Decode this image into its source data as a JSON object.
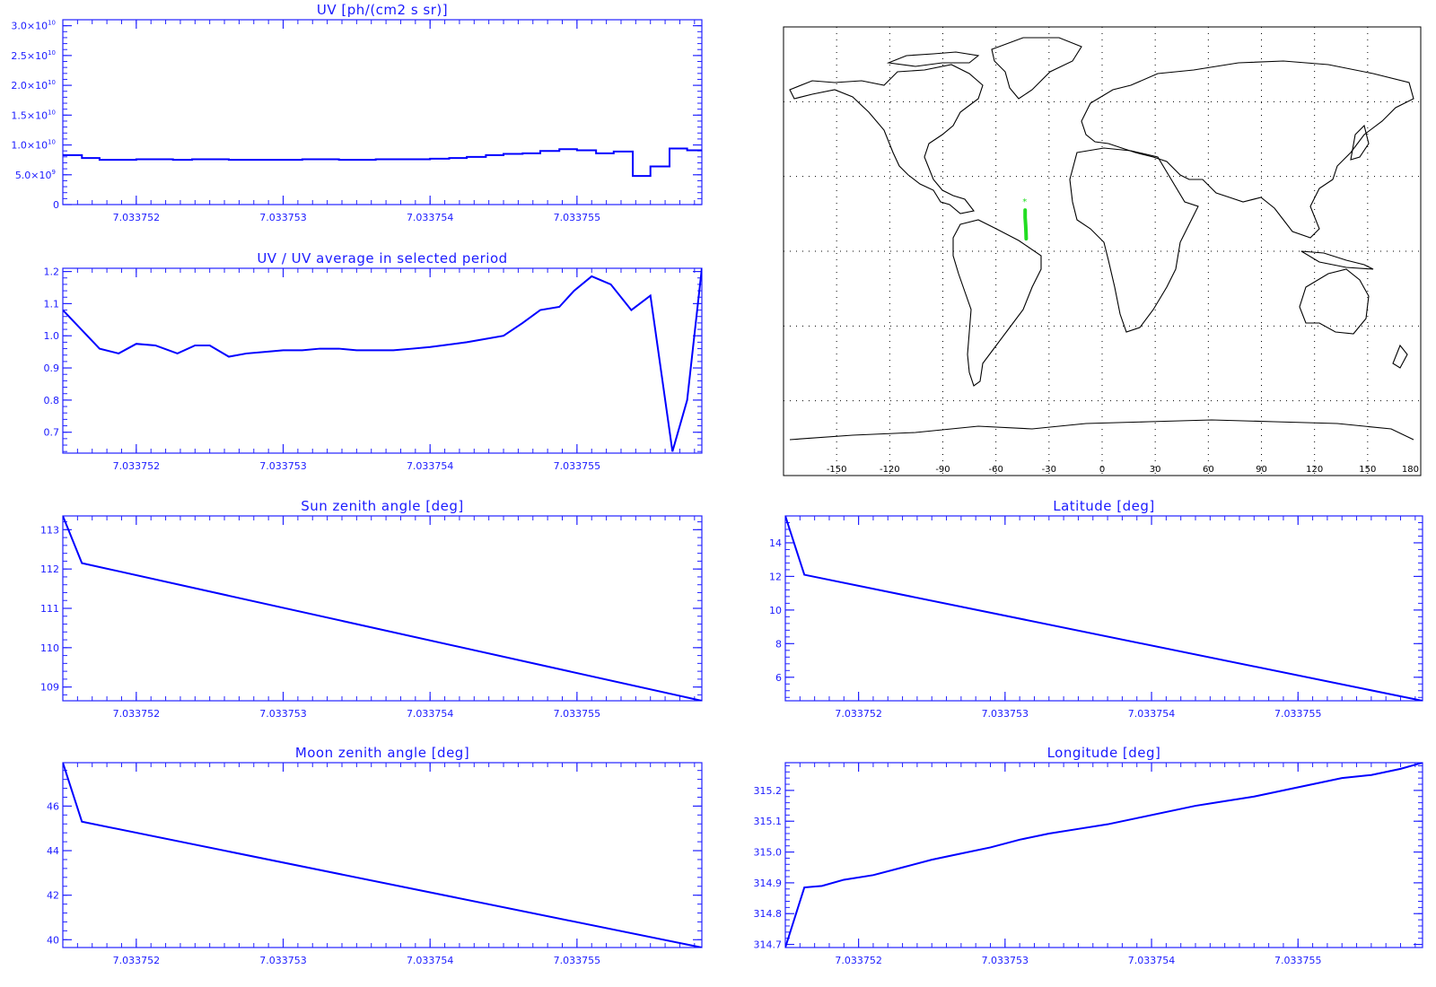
{
  "colors": {
    "plot": "#0000ff",
    "axis": "#2222ff",
    "track": "#22dd22",
    "map": "#000000"
  },
  "chart_data": [
    {
      "id": "uv",
      "type": "line",
      "step": true,
      "title": "UV [ph/(cm2 s sr)]",
      "xlim": [
        7.0337515,
        7.03375585
      ],
      "ylim": [
        0,
        31000000000
      ],
      "xticks": [
        7.033752,
        7.033753,
        7.033754,
        7.033755
      ],
      "xtick_labels": [
        "7.033752",
        "7.033753",
        "7.033754",
        "7.033755"
      ],
      "yticks": [
        0,
        5000000000,
        10000000000,
        15000000000,
        20000000000,
        25000000000,
        30000000000
      ],
      "ytick_labels": [
        {
          "base": "0",
          "exp": ""
        },
        {
          "base": "5.0×10",
          "exp": "9"
        },
        {
          "base": "1.0×10",
          "exp": "10"
        },
        {
          "base": "1.5×10",
          "exp": "10"
        },
        {
          "base": "2.0×10",
          "exp": "10"
        },
        {
          "base": "2.5×10",
          "exp": "10"
        },
        {
          "base": "3.0×10",
          "exp": "10"
        }
      ],
      "x": [
        7.0337515,
        7.03375163,
        7.03375175,
        7.03375188,
        7.033752,
        7.03375213,
        7.03375225,
        7.03375238,
        7.0337525,
        7.03375263,
        7.03375275,
        7.03375288,
        7.033753,
        7.03375313,
        7.03375325,
        7.03375338,
        7.0337535,
        7.03375363,
        7.03375375,
        7.03375388,
        7.033754,
        7.03375413,
        7.03375425,
        7.03375438,
        7.0337545,
        7.03375463,
        7.03375475,
        7.03375488,
        7.033755,
        7.03375513,
        7.03375525,
        7.03375538,
        7.0337555,
        7.03375563,
        7.03375575
      ],
      "y": [
        8300000000,
        7800000000,
        7500000000,
        7500000000,
        7600000000,
        7600000000,
        7500000000,
        7600000000,
        7600000000,
        7500000000,
        7500000000,
        7500000000,
        7500000000,
        7600000000,
        7600000000,
        7500000000,
        7500000000,
        7600000000,
        7600000000,
        7600000000,
        7700000000,
        7800000000,
        8000000000,
        8300000000,
        8500000000,
        8600000000,
        9000000000,
        9300000000,
        9100000000,
        8600000000,
        8900000000,
        4800000000,
        6400000000,
        9400000000,
        9100000000
      ]
    },
    {
      "id": "ratio",
      "type": "line",
      "title": "UV / UV average in selected period",
      "xlim": [
        7.0337515,
        7.03375585
      ],
      "ylim": [
        0.635,
        1.21
      ],
      "xticks": [
        7.033752,
        7.033753,
        7.033754,
        7.033755
      ],
      "xtick_labels": [
        "7.033752",
        "7.033753",
        "7.033754",
        "7.033755"
      ],
      "yticks": [
        0.7,
        0.8,
        0.9,
        1.0,
        1.1,
        1.2
      ],
      "ytick_labels": [
        {
          "base": "0.7",
          "exp": ""
        },
        {
          "base": "0.8",
          "exp": ""
        },
        {
          "base": "0.9",
          "exp": ""
        },
        {
          "base": "1.0",
          "exp": ""
        },
        {
          "base": "1.1",
          "exp": ""
        },
        {
          "base": "1.2",
          "exp": ""
        }
      ],
      "x": [
        7.0337515,
        7.03375175,
        7.03375188,
        7.033752,
        7.03375213,
        7.03375228,
        7.0337524,
        7.0337525,
        7.03375263,
        7.03375275,
        7.03375288,
        7.033753,
        7.03375313,
        7.03375325,
        7.03375338,
        7.0337535,
        7.03375363,
        7.03375375,
        7.03375388,
        7.033754,
        7.03375425,
        7.0337545,
        7.03375463,
        7.03375475,
        7.03375488,
        7.03375498,
        7.0337551,
        7.03375523,
        7.03375537,
        7.0337555,
        7.03375565,
        7.03375575,
        7.03375585
      ],
      "y": [
        1.08,
        0.96,
        0.945,
        0.975,
        0.97,
        0.945,
        0.97,
        0.97,
        0.935,
        0.945,
        0.95,
        0.955,
        0.955,
        0.96,
        0.96,
        0.955,
        0.955,
        0.955,
        0.96,
        0.965,
        0.98,
        1.0,
        1.04,
        1.08,
        1.09,
        1.14,
        1.185,
        1.16,
        1.08,
        1.125,
        0.64,
        0.8,
        1.21
      ]
    },
    {
      "id": "sun",
      "type": "line",
      "title": "Sun zenith angle [deg]",
      "xlim": [
        7.0337515,
        7.03375585
      ],
      "ylim": [
        108.65,
        113.35
      ],
      "xticks": [
        7.033752,
        7.033753,
        7.033754,
        7.033755
      ],
      "xtick_labels": [
        "7.033752",
        "7.033753",
        "7.033754",
        "7.033755"
      ],
      "yticks": [
        109,
        110,
        111,
        112,
        113
      ],
      "ytick_labels": [
        {
          "base": "109",
          "exp": ""
        },
        {
          "base": "110",
          "exp": ""
        },
        {
          "base": "111",
          "exp": ""
        },
        {
          "base": "112",
          "exp": ""
        },
        {
          "base": "113",
          "exp": ""
        }
      ],
      "x": [
        7.0337515,
        7.03375163,
        7.03375585
      ],
      "y": [
        113.35,
        112.15,
        108.65
      ]
    },
    {
      "id": "moon",
      "type": "line",
      "title": "Moon zenith angle [deg]",
      "xlim": [
        7.0337515,
        7.03375585
      ],
      "ylim": [
        39.65,
        47.95
      ],
      "xticks": [
        7.033752,
        7.033753,
        7.033754,
        7.033755
      ],
      "xtick_labels": [
        "7.033752",
        "7.033753",
        "7.033754",
        "7.033755"
      ],
      "yticks": [
        40,
        42,
        44,
        46
      ],
      "ytick_labels": [
        {
          "base": "40",
          "exp": ""
        },
        {
          "base": "42",
          "exp": ""
        },
        {
          "base": "44",
          "exp": ""
        },
        {
          "base": "46",
          "exp": ""
        }
      ],
      "x": [
        7.0337515,
        7.03375163,
        7.03375585
      ],
      "y": [
        47.95,
        45.3,
        39.65
      ]
    },
    {
      "id": "lat",
      "type": "line",
      "title": "Latitude [deg]",
      "xlim": [
        7.0337515,
        7.03375585
      ],
      "ylim": [
        4.6,
        15.6
      ],
      "xticks": [
        7.033752,
        7.033753,
        7.033754,
        7.033755
      ],
      "xtick_labels": [
        "7.033752",
        "7.033753",
        "7.033754",
        "7.033755"
      ],
      "yticks": [
        6,
        8,
        10,
        12,
        14
      ],
      "ytick_labels": [
        {
          "base": "6",
          "exp": ""
        },
        {
          "base": "8",
          "exp": ""
        },
        {
          "base": "10",
          "exp": ""
        },
        {
          "base": "12",
          "exp": ""
        },
        {
          "base": "14",
          "exp": ""
        }
      ],
      "x": [
        7.0337515,
        7.03375163,
        7.03375585
      ],
      "y": [
        15.6,
        12.1,
        4.6
      ]
    },
    {
      "id": "lon",
      "type": "line",
      "title": "Longitude [deg]",
      "xlim": [
        7.0337515,
        7.03375585
      ],
      "ylim": [
        314.69,
        315.29
      ],
      "xticks": [
        7.033752,
        7.033753,
        7.033754,
        7.033755
      ],
      "xtick_labels": [
        "7.033752",
        "7.033753",
        "7.033754",
        "7.033755"
      ],
      "yticks": [
        314.7,
        314.8,
        314.9,
        315.0,
        315.1,
        315.2
      ],
      "ytick_labels": [
        {
          "base": "314.7",
          "exp": ""
        },
        {
          "base": "314.8",
          "exp": ""
        },
        {
          "base": "314.9",
          "exp": ""
        },
        {
          "base": "315.0",
          "exp": ""
        },
        {
          "base": "315.1",
          "exp": ""
        },
        {
          "base": "315.2",
          "exp": ""
        }
      ],
      "x": [
        7.0337515,
        7.03375163,
        7.03375175,
        7.0337519,
        7.0337521,
        7.0337523,
        7.0337525,
        7.0337527,
        7.0337529,
        7.0337531,
        7.0337533,
        7.0337535,
        7.0337537,
        7.0337539,
        7.0337541,
        7.0337543,
        7.0337545,
        7.0337547,
        7.0337549,
        7.0337551,
        7.0337553,
        7.0337555,
        7.0337557,
        7.03375585
      ],
      "y": [
        314.69,
        314.885,
        314.89,
        314.91,
        314.925,
        314.95,
        314.975,
        314.995,
        315.015,
        315.04,
        315.06,
        315.075,
        315.09,
        315.11,
        315.13,
        315.15,
        315.165,
        315.18,
        315.2,
        315.22,
        315.24,
        315.25,
        315.27,
        315.29
      ]
    },
    {
      "id": "map",
      "type": "scatter",
      "xlim": [
        -180,
        180
      ],
      "ylim": [
        -90,
        90
      ],
      "xtick_labels": [
        "-150",
        "-120",
        "-90",
        "-60",
        "-30",
        "0",
        "30",
        "60",
        "90",
        "120",
        "150",
        "180"
      ],
      "track": {
        "lon": [
          -43.5,
          -43.5,
          -43.2,
          -43.0,
          -42.9
        ],
        "lat": [
          16.5,
          13.5,
          10.5,
          7.5,
          5.0
        ]
      },
      "grid": "dotted"
    }
  ]
}
